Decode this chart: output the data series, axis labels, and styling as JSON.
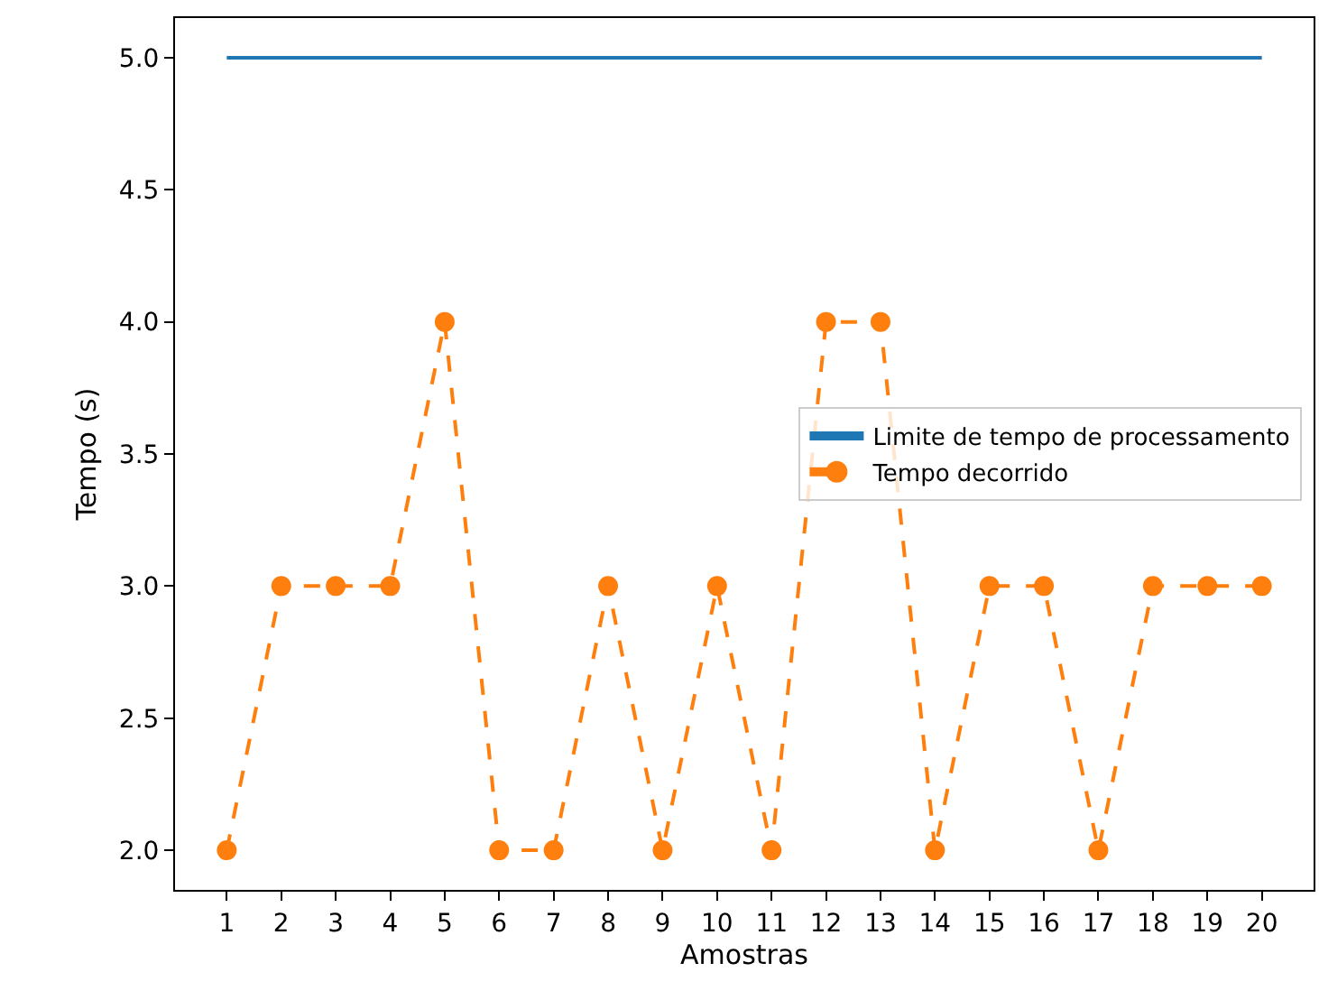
{
  "chart_data": {
    "type": "line",
    "xlabel": "Amostras",
    "ylabel": "Tempo (s)",
    "x": [
      1,
      2,
      3,
      4,
      5,
      6,
      7,
      8,
      9,
      10,
      11,
      12,
      13,
      14,
      15,
      16,
      17,
      18,
      19,
      20
    ],
    "series": [
      {
        "name": "Limite de tempo de processamento",
        "color": "#1f77b4",
        "values": [
          5,
          5,
          5,
          5,
          5,
          5,
          5,
          5,
          5,
          5,
          5,
          5,
          5,
          5,
          5,
          5,
          5,
          5,
          5,
          5
        ],
        "marker": "none",
        "line_style": "solid"
      },
      {
        "name": "Tempo decorrido",
        "color": "#ff7f0e",
        "values": [
          2,
          3,
          3,
          3,
          4,
          2,
          2,
          3,
          2,
          3,
          2,
          4,
          4,
          2,
          3,
          3,
          2,
          3,
          3,
          3
        ],
        "marker": "circle",
        "line_style": "dashed"
      }
    ],
    "xlim": [
      0.05,
      20.95
    ],
    "xticks": [
      1,
      2,
      3,
      4,
      5,
      6,
      7,
      8,
      9,
      10,
      11,
      12,
      13,
      14,
      15,
      16,
      17,
      18,
      19,
      20
    ],
    "ylim": [
      1.85,
      5.15
    ],
    "yticks": [
      {
        "value": 2,
        "label": "2.0"
      },
      {
        "value": 2.5,
        "label": "2.5"
      },
      {
        "value": 3,
        "label": "3.0"
      },
      {
        "value": 3.5,
        "label": "3.5"
      },
      {
        "value": 4,
        "label": "4.0"
      },
      {
        "value": 4.5,
        "label": "4.5"
      },
      {
        "value": 5,
        "label": "5.0"
      }
    ],
    "legend": "center right"
  }
}
